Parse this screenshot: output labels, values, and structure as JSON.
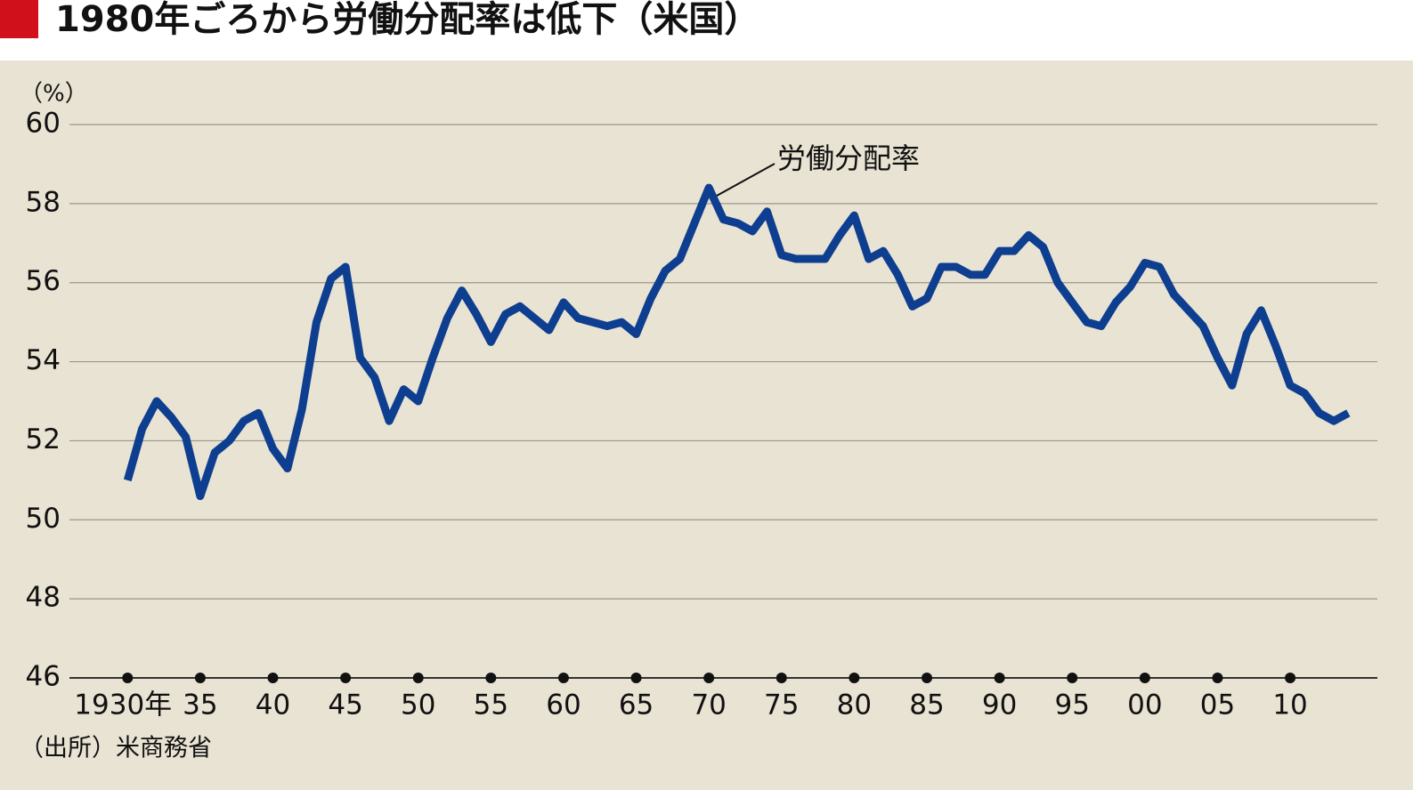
{
  "chart_data": {
    "type": "line",
    "title": "1980年ごろから労働分配率は低下（米国）",
    "y_unit": "（%）",
    "source": "（出所）米商務省",
    "x": [
      1930,
      1931,
      1932,
      1933,
      1934,
      1935,
      1936,
      1937,
      1938,
      1939,
      1940,
      1941,
      1942,
      1943,
      1944,
      1945,
      1946,
      1947,
      1948,
      1949,
      1950,
      1951,
      1952,
      1953,
      1954,
      1955,
      1956,
      1957,
      1958,
      1959,
      1960,
      1961,
      1962,
      1963,
      1964,
      1965,
      1966,
      1967,
      1968,
      1969,
      1970,
      1971,
      1972,
      1973,
      1974,
      1975,
      1976,
      1977,
      1978,
      1979,
      1980,
      1981,
      1982,
      1983,
      1984,
      1985,
      1986,
      1987,
      1988,
      1989,
      1990,
      1991,
      1992,
      1993,
      1994,
      1995,
      1996,
      1997,
      1998,
      1999,
      2000,
      2001,
      2002,
      2003,
      2004,
      2005,
      2006,
      2007,
      2008,
      2009,
      2010,
      2011,
      2012,
      2013,
      2014
    ],
    "series": [
      {
        "name": "労働分配率",
        "color": "#0d3e8f",
        "values": [
          51.0,
          52.3,
          53.0,
          52.6,
          52.1,
          50.6,
          51.7,
          52.0,
          52.5,
          52.7,
          51.8,
          51.3,
          52.8,
          55.0,
          56.1,
          56.4,
          54.1,
          53.6,
          52.5,
          53.3,
          53.0,
          54.1,
          55.1,
          55.8,
          55.2,
          54.5,
          55.2,
          55.4,
          55.1,
          54.8,
          55.5,
          55.1,
          55.0,
          54.9,
          55.0,
          54.7,
          55.6,
          56.3,
          56.6,
          57.5,
          58.4,
          57.6,
          57.5,
          57.3,
          57.8,
          56.7,
          56.6,
          56.6,
          56.6,
          57.2,
          57.7,
          56.6,
          56.8,
          56.2,
          55.4,
          55.6,
          56.4,
          56.4,
          56.2,
          56.2,
          56.8,
          56.8,
          57.2,
          56.9,
          56.0,
          55.5,
          55.0,
          54.9,
          55.5,
          55.9,
          56.5,
          56.4,
          55.7,
          55.3,
          54.9,
          54.1,
          53.4,
          54.7,
          55.3,
          54.4,
          53.4,
          53.2,
          52.7,
          52.5,
          52.7
        ]
      }
    ],
    "xlim": [
      1926,
      2016
    ],
    "xticks": [
      {
        "value": 1930,
        "label": "1930年"
      },
      {
        "value": 1935,
        "label": "35"
      },
      {
        "value": 1940,
        "label": "40"
      },
      {
        "value": 1945,
        "label": "45"
      },
      {
        "value": 1950,
        "label": "50"
      },
      {
        "value": 1955,
        "label": "55"
      },
      {
        "value": 1960,
        "label": "60"
      },
      {
        "value": 1965,
        "label": "65"
      },
      {
        "value": 1970,
        "label": "70"
      },
      {
        "value": 1975,
        "label": "75"
      },
      {
        "value": 1980,
        "label": "80"
      },
      {
        "value": 1985,
        "label": "85"
      },
      {
        "value": 1990,
        "label": "90"
      },
      {
        "value": 1995,
        "label": "95"
      },
      {
        "value": 2000,
        "label": "00"
      },
      {
        "value": 2005,
        "label": "05"
      },
      {
        "value": 2010,
        "label": "10"
      }
    ],
    "ylim": [
      46,
      60
    ],
    "yticks": [
      46,
      48,
      50,
      52,
      54,
      56,
      58,
      60
    ],
    "grid": true
  }
}
